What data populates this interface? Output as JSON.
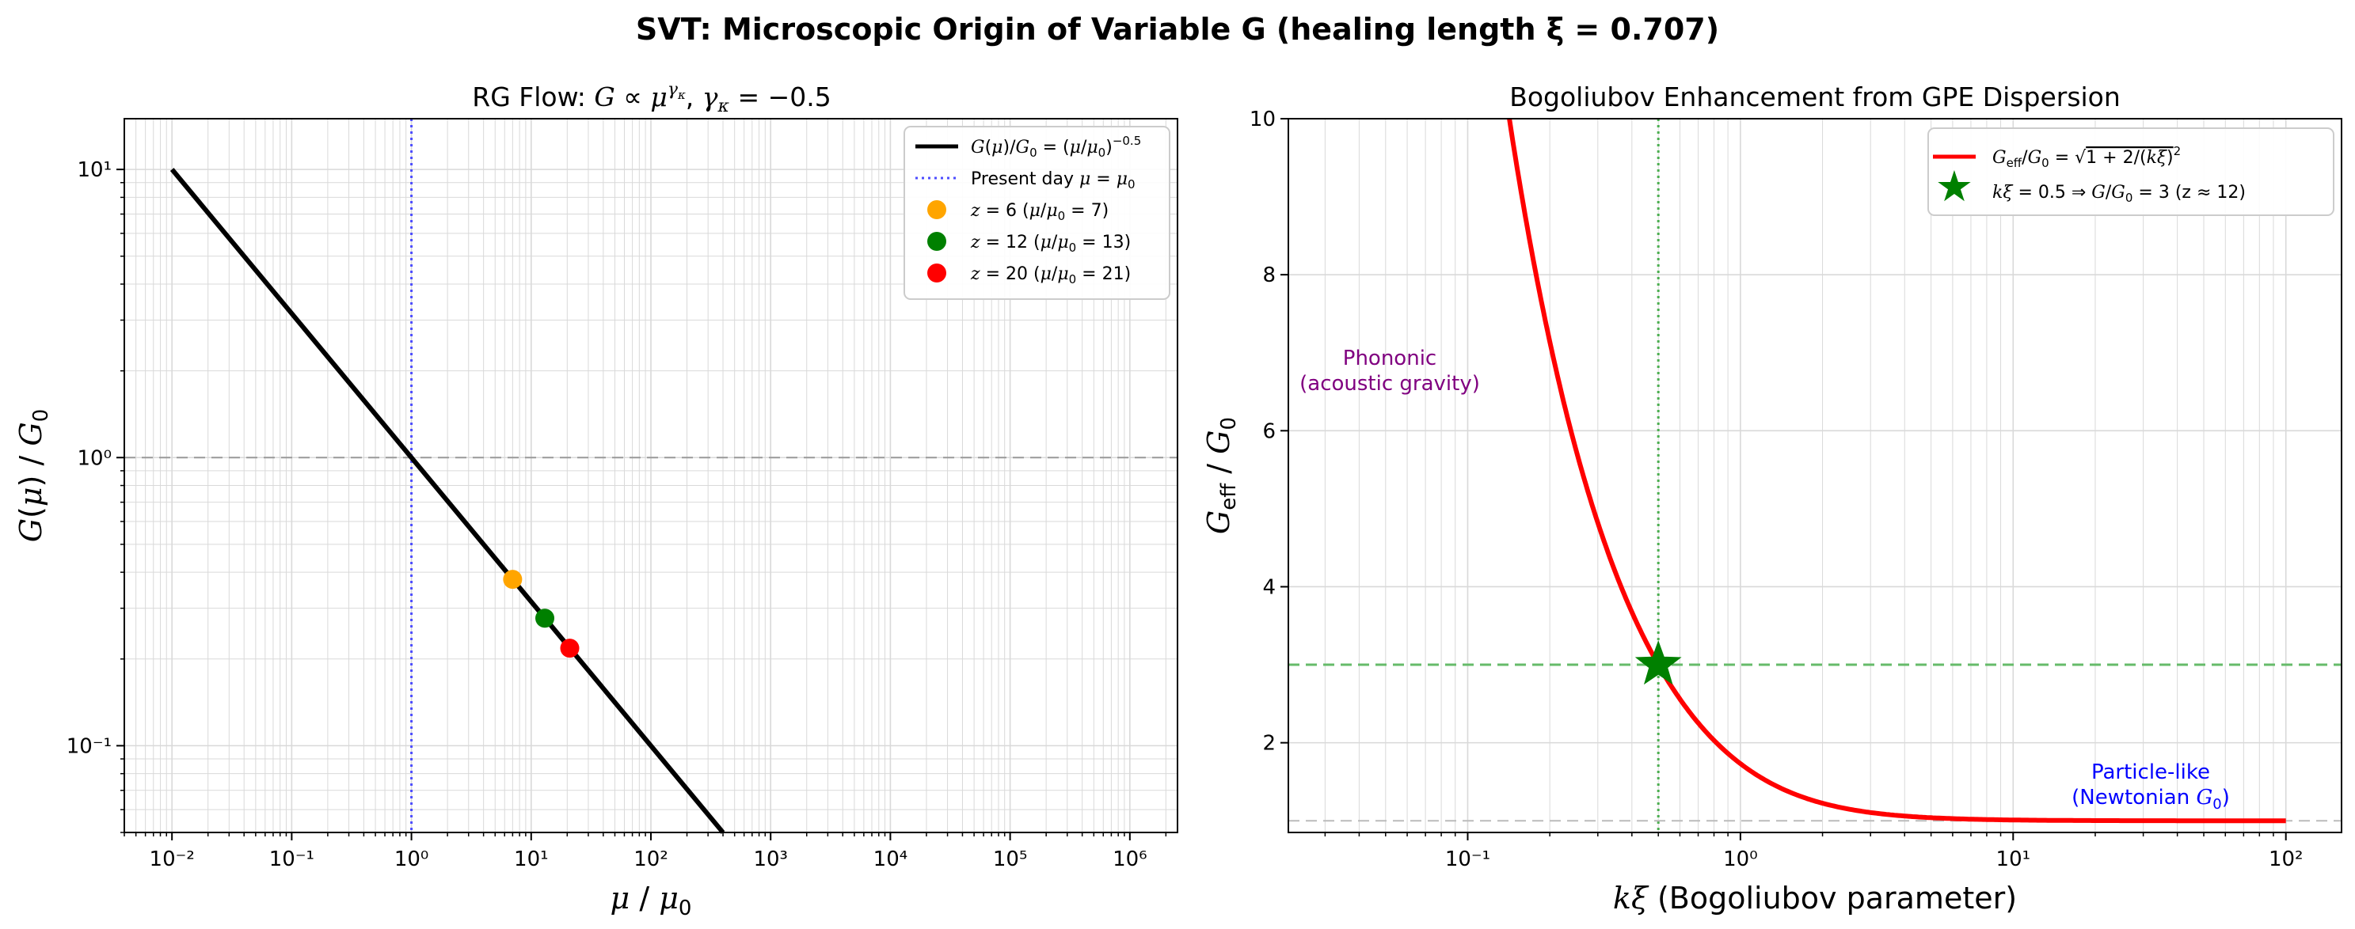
{
  "suptitle": "SVT: Microscopic Origin of Variable G  (healing length ξ = 0.707)",
  "chart_data": [
    {
      "type": "line",
      "panel": "left",
      "title": "RG Flow:  G ∝ μ^γκ,  γκ = −0.5",
      "xlabel": "μ / μ0",
      "ylabel": "G(μ) / G0",
      "xscale": "log",
      "yscale": "log",
      "xlim": [
        0.004,
        2500000
      ],
      "ylim": [
        0.05,
        15
      ],
      "grid": true,
      "legend_position": "top-right",
      "x_tick_labels": [
        "10⁻²",
        "10⁻¹",
        "10⁰",
        "10¹",
        "10²",
        "10³",
        "10⁴",
        "10⁵",
        "10⁶"
      ],
      "y_tick_labels": [
        "10⁻¹",
        "10⁰",
        "10¹"
      ],
      "series": [
        {
          "name": "G(μ)/G0 = (μ/μ0)^−0.5",
          "color": "#000000",
          "x": [
            0.01,
            0.1,
            1,
            10,
            100,
            400
          ],
          "y": [
            10,
            3.1623,
            1,
            0.3162,
            0.1,
            0.05
          ]
        }
      ],
      "reference_lines": [
        {
          "name": "Present day  μ = μ0",
          "orientation": "vertical",
          "value": 1,
          "color": "#4d4dff",
          "style": "dotted"
        },
        {
          "orientation": "horizontal",
          "value": 1,
          "color": "#999999",
          "style": "dashed"
        }
      ],
      "points": [
        {
          "name": "z = 6  (μ/μ0 = 7)",
          "x": 7,
          "y": 0.378,
          "color": "#ffa500"
        },
        {
          "name": "z = 12  (μ/μ0 = 13)",
          "x": 13,
          "y": 0.277,
          "color": "#008000"
        },
        {
          "name": "z = 20  (μ/μ0 = 21)",
          "x": 21,
          "y": 0.218,
          "color": "#ff0000"
        }
      ],
      "legend": [
        {
          "label": "G(μ)/G0 = (μ/μ0)^−0.5"
        },
        {
          "label": "Present day  μ = μ0"
        },
        {
          "label": "z = 6  (μ/μ0 = 7)"
        },
        {
          "label": "z = 12  (μ/μ0 = 13)"
        },
        {
          "label": "z = 20  (μ/μ0 = 21)"
        }
      ]
    },
    {
      "type": "line",
      "panel": "right",
      "title": "Bogoliubov Enhancement from GPE Dispersion",
      "xlabel": "kξ   (Bogoliubov parameter)",
      "ylabel": "Geff / G0",
      "xscale": "log",
      "yscale": "linear",
      "xlim": [
        0.022,
        160
      ],
      "ylim": [
        0.85,
        10
      ],
      "grid": true,
      "legend_position": "top-right",
      "x_tick_labels": [
        "10⁻¹",
        "10⁰",
        "10¹",
        "10²"
      ],
      "y_tick_labels": [
        "2",
        "4",
        "6",
        "8",
        "10"
      ],
      "y_ticks": [
        2,
        4,
        6,
        8,
        10
      ],
      "series": [
        {
          "name": "Geff/G0 = √(1 + 2/(kξ)²)",
          "color": "#ff0000",
          "formula": "sqrt(1 + 2/(kξ)^2)",
          "x_range": [
            0.02,
            100
          ]
        }
      ],
      "reference_lines": [
        {
          "orientation": "vertical",
          "value": 0.5,
          "color": "#4caf50",
          "style": "dotted"
        },
        {
          "orientation": "horizontal",
          "value": 3,
          "color": "#66bb6a",
          "style": "dashed"
        },
        {
          "orientation": "horizontal",
          "value": 1,
          "color": "#bbbbbb",
          "style": "dashed"
        }
      ],
      "points": [
        {
          "name": "kξ = 0.5  ⇒  G/G0 = 3  (z ≈ 12)",
          "x": 0.5,
          "y": 3,
          "color": "#008000",
          "marker": "star"
        }
      ],
      "annotations": [
        {
          "lines": [
            "Phononic",
            "(acoustic gravity)"
          ],
          "x": 0.045,
          "y": 6.6,
          "color": "#800080"
        },
        {
          "lines": [
            "Particle-like",
            "(Newtonian G0)"
          ],
          "x": 30,
          "y": 1.3,
          "color": "#0000ff"
        }
      ],
      "legend": [
        {
          "label": "Geff/G0 = √(1 + 2/(kξ)²)"
        },
        {
          "label": "kξ = 0.5  ⇒  G/G0 = 3  (z ≈ 12)"
        }
      ]
    }
  ]
}
